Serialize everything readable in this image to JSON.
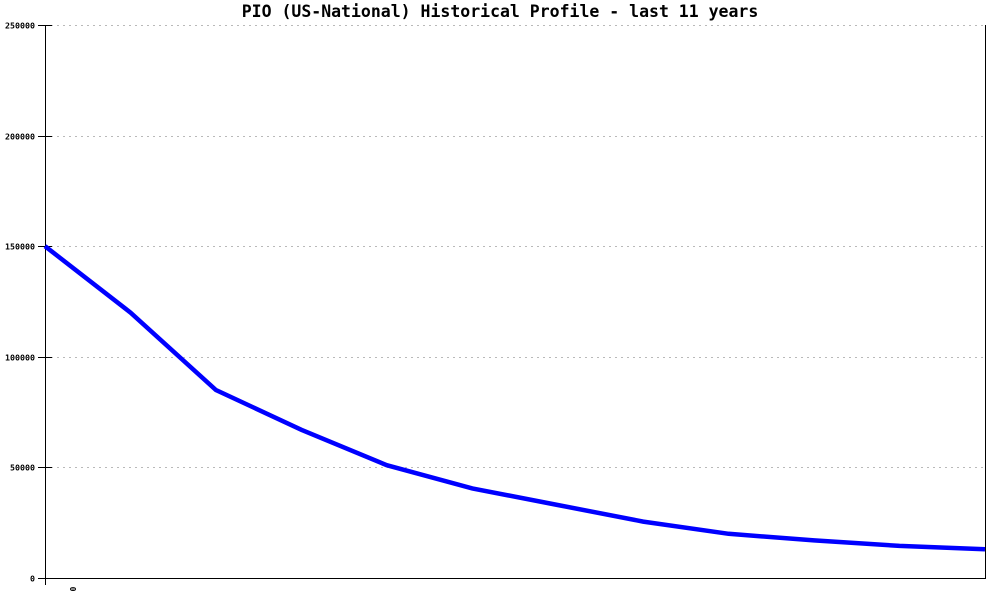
{
  "page": {
    "background": "#ffffff"
  },
  "chart_data": {
    "type": "line",
    "title": "PIO (US-National) Historical Profile - last 11 years",
    "series": [
      {
        "name": "PIO (US-National)",
        "x": [
          0,
          1,
          2,
          3,
          4,
          5,
          6,
          7,
          8,
          9,
          10,
          11
        ],
        "values": [
          150000,
          120000,
          85000,
          67000,
          51000,
          40500,
          33000,
          25500,
          20000,
          17000,
          14500,
          13000
        ]
      }
    ],
    "xlabel": "",
    "ylabel": "",
    "xlim": [
      0,
      11
    ],
    "ylim": [
      0,
      250000
    ],
    "yticks": [
      0,
      50000,
      100000,
      150000,
      200000,
      250000
    ],
    "ytick_labels": [
      "0",
      "50000",
      "100000",
      "150000",
      "200000",
      "250000"
    ],
    "xticks": [
      0
    ],
    "xtick_labels": [
      "0"
    ],
    "xtick_label_rotation_deg": 90,
    "grid": "horizontal-dotted",
    "legend": "none",
    "colors": {
      "line": "#0000ff",
      "grid": "#b9b9b9",
      "axis": "#000000",
      "text": "#000000",
      "background": "#ffffff"
    }
  }
}
